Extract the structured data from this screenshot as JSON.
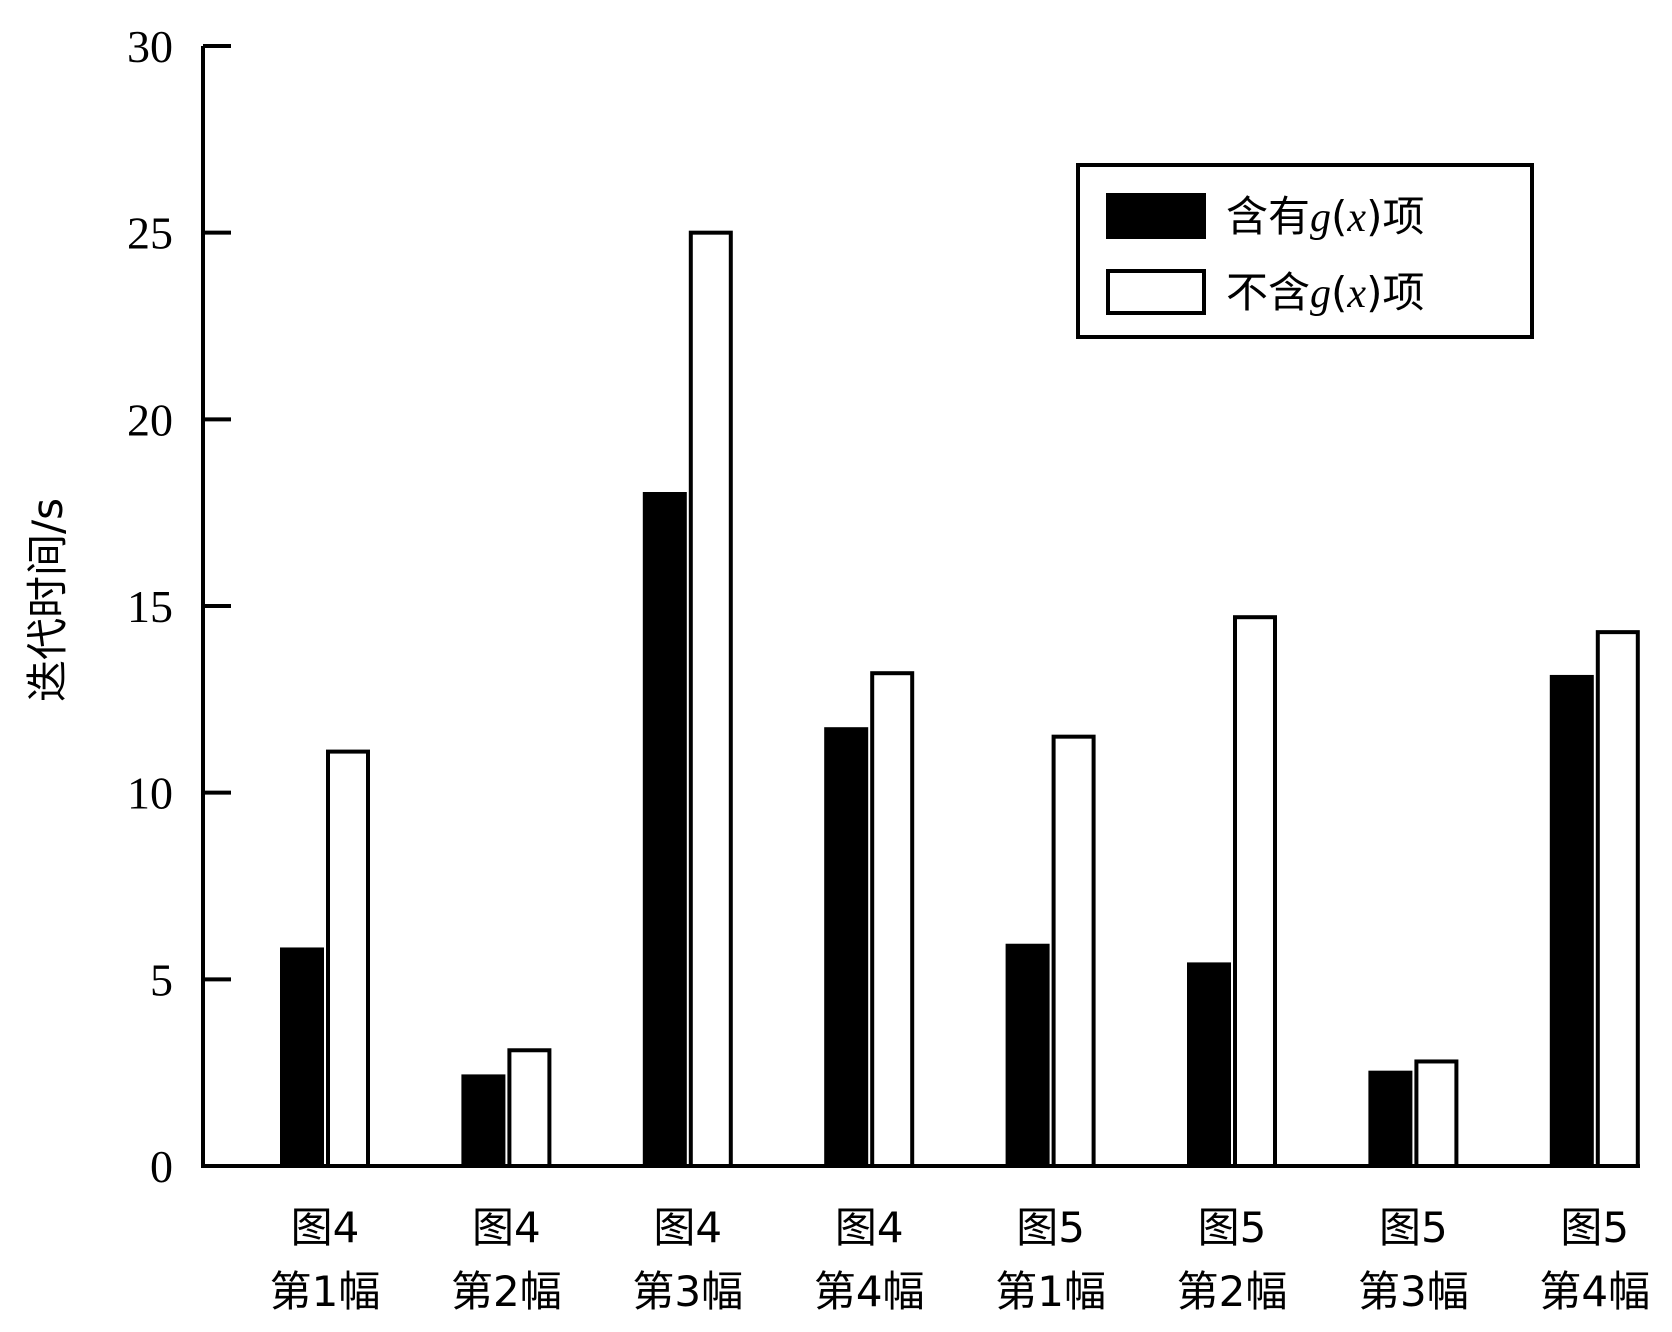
{
  "chart_data": {
    "type": "bar",
    "ylabel": "迭代时间/s",
    "ylim": [
      0,
      30
    ],
    "yticks": [
      0,
      5,
      10,
      15,
      20,
      25,
      30
    ],
    "categories": [
      [
        "图4",
        "第1幅"
      ],
      [
        "图4",
        "第2幅"
      ],
      [
        "图4",
        "第3幅"
      ],
      [
        "图4",
        "第4幅"
      ],
      [
        "图5",
        "第1幅"
      ],
      [
        "图5",
        "第2幅"
      ],
      [
        "图5",
        "第3幅"
      ],
      [
        "图5",
        "第4幅"
      ]
    ],
    "series": [
      {
        "name": "含有g(x)项",
        "name_parts": [
          "含有",
          "g",
          "(",
          "x",
          ")项"
        ],
        "color": "#000000",
        "values": [
          5.8,
          2.4,
          18.0,
          11.7,
          5.9,
          5.4,
          2.5,
          13.1
        ]
      },
      {
        "name": "不含g(x)项",
        "name_parts": [
          "不含",
          "g",
          "(",
          "x",
          ")项"
        ],
        "color": "#ffffff",
        "values": [
          11.1,
          3.1,
          25.0,
          13.2,
          11.5,
          14.7,
          2.8,
          14.3
        ]
      }
    ],
    "legend_position": "top-right",
    "grid": false
  }
}
